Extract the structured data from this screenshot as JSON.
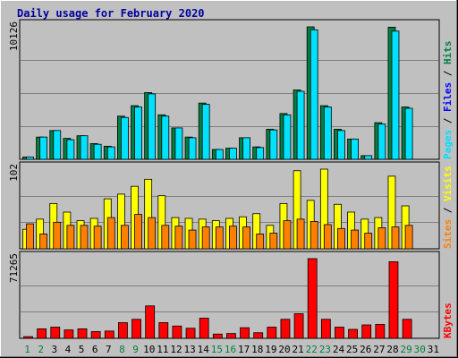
{
  "chart_data": {
    "type": "bar",
    "title": "Daily usage for February 2020",
    "categories": [
      "1",
      "2",
      "3",
      "4",
      "5",
      "6",
      "7",
      "8",
      "9",
      "10",
      "11",
      "12",
      "13",
      "14",
      "15",
      "16",
      "17",
      "18",
      "19",
      "20",
      "21",
      "22",
      "23",
      "24",
      "25",
      "26",
      "27",
      "28",
      "29",
      "30",
      "31"
    ],
    "weekend_days": [
      "1",
      "2",
      "8",
      "9",
      "15",
      "16",
      "22",
      "23",
      "29",
      "30"
    ],
    "colors": {
      "hits": "#008040",
      "files": "#0000ff",
      "pages": "#00e0ff",
      "visits": "#ffff00",
      "sites": "#ff8000",
      "kbytes": "#ff0000",
      "title": "#0000a0",
      "weekday_label": "#000000",
      "weekend_label": "#008040",
      "plot_bg": "#c0c0c0"
    },
    "panels": [
      {
        "id": "hits-files-pages",
        "ymax_label": "10126",
        "ymax": 10126,
        "legend": [
          "Pages",
          "Files",
          "Hits"
        ],
        "series": [
          {
            "name": "Hits",
            "values": [
              180,
              1700,
              2200,
              1600,
              1800,
              1200,
              1000,
              3300,
              4100,
              5100,
              3400,
              2400,
              1700,
              4300,
              750,
              850,
              1650,
              950,
              2300,
              3500,
              5300,
              10126,
              4100,
              2300,
              1550,
              280,
              2800,
              10100,
              4000,
              0,
              0
            ]
          },
          {
            "name": "Pages",
            "values": [
              180,
              1700,
              2200,
              1500,
              1800,
              1150,
              950,
              3200,
              4000,
              5000,
              3300,
              2400,
              1650,
              4200,
              750,
              850,
              1650,
              900,
              2250,
              3400,
              5200,
              9900,
              4000,
              2200,
              1550,
              280,
              2700,
              9800,
              3900,
              0,
              0
            ]
          }
        ]
      },
      {
        "id": "visits-sites",
        "ymax_label": "102",
        "ymax": 102,
        "legend": [
          "Sites",
          "Visits"
        ],
        "series": [
          {
            "name": "Visits",
            "values": [
              25,
              38,
              58,
              47,
              36,
              39,
              64,
              70,
              80,
              89,
              68,
              40,
              39,
              38,
              36,
              39,
              41,
              45,
              30,
              58,
              100,
              62,
              102,
              57,
              47,
              38,
              40,
              93,
              55,
              0,
              0
            ]
          },
          {
            "name": "Sites",
            "values": [
              32,
              19,
              34,
              30,
              30,
              29,
              40,
              30,
              44,
              40,
              30,
              29,
              24,
              28,
              28,
              29,
              28,
              19,
              20,
              36,
              38,
              35,
              31,
              26,
              24,
              20,
              27,
              28,
              30,
              0,
              0
            ]
          }
        ]
      },
      {
        "id": "kbytes",
        "ymax_label": "71265",
        "ymax": 71265,
        "legend": [
          "KBytes"
        ],
        "series": [
          {
            "name": "KBytes",
            "values": [
              1500,
              8500,
              10000,
              7500,
              8500,
              6000,
              6500,
              14000,
              17000,
              29000,
              14000,
              11000,
              9000,
              18000,
              3800,
              4300,
              9500,
              5000,
              10000,
              17000,
              22000,
              71265,
              17000,
              10000,
              8000,
              12000,
              12500,
              68500,
              17000,
              0,
              0
            ]
          }
        ]
      }
    ]
  }
}
